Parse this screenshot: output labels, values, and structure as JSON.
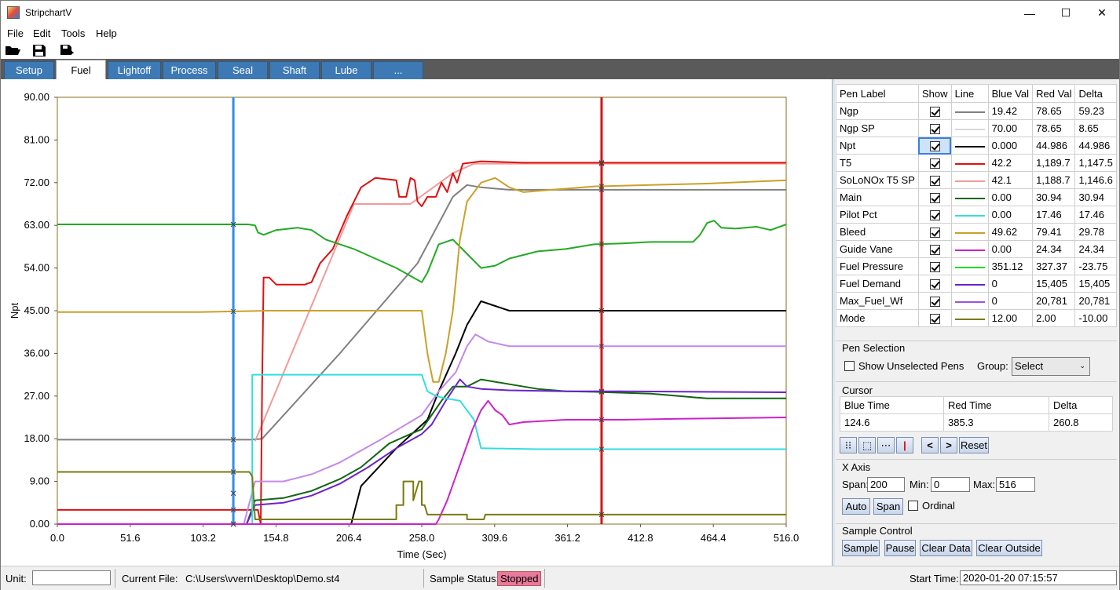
{
  "window": {
    "title": "StripchartV",
    "minimize": "—",
    "maximize": "☐",
    "close": "✕"
  },
  "menu": [
    "File",
    "Edit",
    "Tools",
    "Help"
  ],
  "toolbar": {
    "icons": [
      "open-folder-icon",
      "save-icon",
      "save-as-icon"
    ]
  },
  "tabs": [
    "Setup",
    "Fuel",
    "Lightoff",
    "Process",
    "Seal",
    "Shaft",
    "Lube",
    "..."
  ],
  "active_tab": "Fuel",
  "chart_data": {
    "type": "line",
    "xlabel": "Time (Sec)",
    "ylabel": "Npt",
    "xlim": [
      0,
      516
    ],
    "ylim": [
      0,
      90
    ],
    "x_ticks": [
      "0.0",
      "51.6",
      "103.2",
      "154.8",
      "206.4",
      "258.0",
      "309.6",
      "361.2",
      "412.8",
      "464.4",
      "516.0"
    ],
    "y_ticks": [
      "0.00",
      "9.00",
      "18.00",
      "27.00",
      "36.00",
      "45.00",
      "54.00",
      "63.00",
      "72.00",
      "81.00",
      "90.00"
    ],
    "blue_cursor": 124.6,
    "red_cursor": 385.3,
    "series": [
      {
        "color": "#808080",
        "points": [
          [
            0,
            17.8
          ],
          [
            137,
            17.8
          ],
          [
            145,
            18
          ],
          [
            200,
            36
          ],
          [
            255,
            55
          ],
          [
            280,
            69
          ],
          [
            290,
            71.5
          ],
          [
            300,
            71
          ],
          [
            320,
            70.5
          ],
          [
            516,
            70.5
          ]
        ]
      },
      {
        "color": "#f29a9a",
        "points": [
          [
            140,
            17.5
          ],
          [
            210,
            67.5
          ],
          [
            250,
            67.5
          ],
          [
            280,
            74
          ],
          [
            295,
            76
          ],
          [
            310,
            76
          ],
          [
            516,
            76
          ]
        ]
      },
      {
        "color": "#000000",
        "points": [
          [
            0,
            0
          ],
          [
            208,
            0
          ],
          [
            215,
            8
          ],
          [
            240,
            16
          ],
          [
            262,
            22
          ],
          [
            270,
            28
          ],
          [
            282,
            36
          ],
          [
            290,
            42
          ],
          [
            300,
            47
          ],
          [
            310,
            46
          ],
          [
            320,
            45
          ],
          [
            516,
            45
          ]
        ]
      },
      {
        "color": "#dd1111",
        "points": [
          [
            0,
            3
          ],
          [
            142,
            3
          ],
          [
            144,
            0
          ],
          [
            145,
            30
          ],
          [
            146,
            52
          ],
          [
            150,
            52
          ],
          [
            155,
            50.5
          ],
          [
            175,
            50.5
          ],
          [
            180,
            51
          ],
          [
            186,
            55
          ],
          [
            195,
            58
          ],
          [
            205,
            65
          ],
          [
            215,
            71
          ],
          [
            225,
            73
          ],
          [
            240,
            72.5
          ],
          [
            242,
            69
          ],
          [
            247,
            69
          ],
          [
            250,
            73
          ],
          [
            253,
            72.5
          ],
          [
            255,
            68
          ],
          [
            258,
            67
          ],
          [
            262,
            69
          ],
          [
            268,
            69
          ],
          [
            272,
            72
          ],
          [
            276,
            70
          ],
          [
            280,
            74
          ],
          [
            283,
            72
          ],
          [
            287,
            76
          ],
          [
            300,
            76.5
          ],
          [
            330,
            76.2
          ],
          [
            516,
            76.2
          ]
        ]
      },
      {
        "color": "#22aa22",
        "points": [
          [
            0,
            63.2
          ],
          [
            135,
            63.2
          ],
          [
            140,
            63
          ],
          [
            142,
            61.5
          ],
          [
            146,
            61
          ],
          [
            155,
            62
          ],
          [
            170,
            62.5
          ],
          [
            180,
            62
          ],
          [
            190,
            60
          ],
          [
            210,
            58
          ],
          [
            240,
            54
          ],
          [
            258,
            51
          ],
          [
            262,
            53
          ],
          [
            270,
            59
          ],
          [
            280,
            60
          ],
          [
            290,
            57
          ],
          [
            300,
            54
          ],
          [
            310,
            54.5
          ],
          [
            320,
            56
          ],
          [
            340,
            57.5
          ],
          [
            360,
            58
          ],
          [
            380,
            59
          ],
          [
            400,
            59.2
          ],
          [
            420,
            59.5
          ],
          [
            440,
            59.5
          ],
          [
            450,
            59.5
          ],
          [
            455,
            61
          ],
          [
            460,
            63.5
          ],
          [
            465,
            64
          ],
          [
            470,
            62.5
          ],
          [
            480,
            62.3
          ],
          [
            495,
            62.7
          ],
          [
            505,
            62
          ],
          [
            516,
            63.2
          ]
        ]
      },
      {
        "color": "#caa02a",
        "points": [
          [
            0,
            44.7
          ],
          [
            100,
            44.7
          ],
          [
            150,
            45
          ],
          [
            230,
            45
          ],
          [
            258,
            45
          ],
          [
            262,
            36
          ],
          [
            266,
            30
          ],
          [
            270,
            30
          ],
          [
            275,
            36
          ],
          [
            280,
            45
          ],
          [
            285,
            60
          ],
          [
            290,
            68
          ],
          [
            300,
            72
          ],
          [
            310,
            73
          ],
          [
            320,
            71
          ],
          [
            330,
            70
          ],
          [
            350,
            70.5
          ],
          [
            380,
            71.2
          ],
          [
            420,
            71.5
          ],
          [
            460,
            71.8
          ],
          [
            516,
            72.5
          ]
        ]
      },
      {
        "color": "#c488e8",
        "points": [
          [
            0,
            0
          ],
          [
            132,
            0
          ],
          [
            140,
            9
          ],
          [
            160,
            9
          ],
          [
            180,
            10.5
          ],
          [
            200,
            13
          ],
          [
            230,
            18
          ],
          [
            258,
            23
          ],
          [
            270,
            28
          ],
          [
            282,
            32
          ],
          [
            290,
            37.5
          ],
          [
            296,
            40
          ],
          [
            305,
            38.5
          ],
          [
            320,
            37.5
          ],
          [
            360,
            37.5
          ],
          [
            516,
            37.5
          ]
        ]
      },
      {
        "color": "#116611",
        "points": [
          [
            0,
            0
          ],
          [
            134,
            0
          ],
          [
            140,
            5
          ],
          [
            160,
            5.5
          ],
          [
            180,
            7
          ],
          [
            200,
            9.5
          ],
          [
            215,
            12
          ],
          [
            235,
            17
          ],
          [
            250,
            19
          ],
          [
            258,
            20
          ],
          [
            265,
            23
          ],
          [
            272,
            26
          ],
          [
            280,
            29
          ],
          [
            290,
            29
          ],
          [
            300,
            30.5
          ],
          [
            320,
            29.5
          ],
          [
            340,
            28.5
          ],
          [
            360,
            28
          ],
          [
            380,
            27.9
          ],
          [
            420,
            27.5
          ],
          [
            440,
            27
          ],
          [
            460,
            26.5
          ],
          [
            490,
            26.5
          ],
          [
            516,
            26.5
          ]
        ]
      },
      {
        "color": "#6a22cc",
        "points": [
          [
            0,
            0
          ],
          [
            134,
            0
          ],
          [
            140,
            4
          ],
          [
            160,
            4.5
          ],
          [
            180,
            6
          ],
          [
            200,
            8.5
          ],
          [
            220,
            12
          ],
          [
            240,
            16
          ],
          [
            258,
            19
          ],
          [
            265,
            21
          ],
          [
            275,
            26
          ],
          [
            285,
            30.5
          ],
          [
            290,
            29
          ],
          [
            300,
            28.5
          ],
          [
            320,
            28.2
          ],
          [
            360,
            28
          ],
          [
            400,
            28
          ],
          [
            516,
            27.8
          ]
        ]
      },
      {
        "color": "#33dddd",
        "points": [
          [
            0,
            0
          ],
          [
            132,
            0
          ],
          [
            138,
            0
          ],
          [
            138,
            31.5
          ],
          [
            258,
            31.5
          ],
          [
            262,
            28
          ],
          [
            268,
            27
          ],
          [
            275,
            26.5
          ],
          [
            285,
            26
          ],
          [
            295,
            22
          ],
          [
            300,
            16
          ],
          [
            340,
            15.8
          ],
          [
            516,
            15.8
          ]
        ]
      },
      {
        "color": "#cc22cc",
        "points": [
          [
            0,
            0
          ],
          [
            268,
            0
          ],
          [
            270,
            1
          ],
          [
            276,
            5
          ],
          [
            282,
            10
          ],
          [
            288,
            15
          ],
          [
            294,
            20
          ],
          [
            300,
            24
          ],
          [
            305,
            26
          ],
          [
            310,
            24
          ],
          [
            315,
            23
          ],
          [
            320,
            21
          ],
          [
            330,
            21.5
          ],
          [
            360,
            22
          ],
          [
            400,
            22
          ],
          [
            440,
            22.2
          ],
          [
            516,
            22.5
          ]
        ]
      },
      {
        "color": "#7a7a10",
        "points": [
          [
            0,
            11
          ],
          [
            136,
            11
          ],
          [
            138,
            10
          ],
          [
            140,
            1
          ],
          [
            200,
            1
          ],
          [
            240,
            1
          ],
          [
            240,
            4
          ],
          [
            245,
            4
          ],
          [
            245,
            9
          ],
          [
            252,
            9
          ],
          [
            252,
            5
          ],
          [
            256,
            9
          ],
          [
            258,
            9
          ],
          [
            258,
            4
          ],
          [
            260,
            4
          ],
          [
            262,
            2
          ],
          [
            290,
            2
          ],
          [
            290,
            1
          ],
          [
            302,
            1
          ],
          [
            303,
            2
          ],
          [
            516,
            2
          ]
        ]
      }
    ]
  },
  "pen_table": {
    "headers": [
      "Pen Label",
      "Show",
      "Line",
      "Blue Val",
      "Red Val",
      "Delta"
    ],
    "rows": [
      {
        "label": "Ngp",
        "color": "#808080",
        "blue": "19.42",
        "red": "78.65",
        "delta": "59.23"
      },
      {
        "label": "Ngp SP",
        "color": "#d8d8d8",
        "blue": "70.00",
        "red": "78.65",
        "delta": "8.65"
      },
      {
        "label": "Npt",
        "color": "#000000",
        "blue": "0.000",
        "red": "44.986",
        "delta": "44.986"
      },
      {
        "label": "T5",
        "color": "#dd1111",
        "blue": "42.2",
        "red": "1,189.7",
        "delta": "1,147.5"
      },
      {
        "label": "SoLoNOx T5 SP",
        "color": "#f29a9a",
        "blue": "42.1",
        "red": "1,188.7",
        "delta": "1,146.6"
      },
      {
        "label": "Main",
        "color": "#116611",
        "blue": "0.00",
        "red": "30.94",
        "delta": "30.94"
      },
      {
        "label": "Pilot Pct",
        "color": "#33dddd",
        "blue": "0.00",
        "red": "17.46",
        "delta": "17.46"
      },
      {
        "label": "Bleed",
        "color": "#caa02a",
        "blue": "49.62",
        "red": "79.41",
        "delta": "29.78"
      },
      {
        "label": "Guide Vane",
        "color": "#cc22cc",
        "blue": "0.00",
        "red": "24.34",
        "delta": "24.34"
      },
      {
        "label": "Fuel Pressure",
        "color": "#22dd22",
        "blue": "351.12",
        "red": "327.37",
        "delta": "-23.75"
      },
      {
        "label": "Fuel Demand",
        "color": "#6a22cc",
        "blue": "0",
        "red": "15,405",
        "delta": "15,405"
      },
      {
        "label": "Max_Fuel_Wf",
        "color": "#9a55dd",
        "blue": "0",
        "red": "20,781",
        "delta": "20,781"
      },
      {
        "label": "Mode",
        "color": "#7a7a10",
        "blue": "12.00",
        "red": "2.00",
        "delta": "-10.00"
      }
    ]
  },
  "pen_selection": {
    "title": "Pen Selection",
    "show_unselected": "Show Unselected Pens",
    "group_label": "Group:",
    "group_value": "Select"
  },
  "cursor": {
    "title": "Cursor",
    "headers": [
      "Blue Time",
      "Red Time",
      "Delta"
    ],
    "values": [
      "124.6",
      "385.3",
      "260.8"
    ],
    "reset": "Reset"
  },
  "x_axis": {
    "title": "X Axis",
    "span_label": "Span:",
    "span": "200",
    "min_label": "Min:",
    "min": "0",
    "max_label": "Max:",
    "max": "516",
    "auto": "Auto",
    "span_btn": "Span",
    "ordinal": "Ordinal"
  },
  "sample_control": {
    "title": "Sample Control",
    "sample": "Sample",
    "pause": "Pause",
    "clear_data": "Clear Data",
    "clear_outside": "Clear Outside"
  },
  "status": {
    "unit_label": "Unit:",
    "unit_value": "",
    "file_label": "Current File:",
    "file": "C:\\Users\\vvern\\Desktop\\Demo.st4",
    "sample_status_label": "Sample Status:",
    "sample_status": "Stopped",
    "start_time_label": "Start Time:",
    "start_time": "2020-01-20 07:15:57"
  }
}
